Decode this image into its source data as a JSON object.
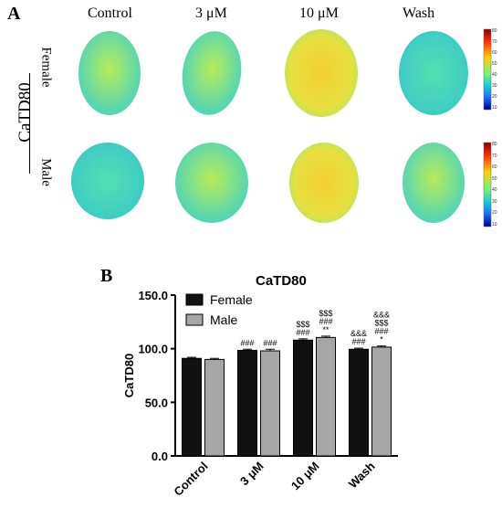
{
  "panel_a": {
    "letter": "A",
    "columns": [
      "Control",
      "3 μM",
      "10 μM",
      "Wash"
    ],
    "group_label": "CaTD80",
    "rows": [
      "Female",
      "Male"
    ],
    "colorbar_ticks": [
      "80",
      "70",
      "60",
      "50",
      "40",
      "30",
      "20",
      "10"
    ]
  },
  "panel_b": {
    "letter": "B"
  },
  "chart_data": {
    "type": "bar",
    "title": "CaTD80",
    "xlabel": "",
    "ylabel": "CaTD80",
    "ylim": [
      0,
      150
    ],
    "yticks": [
      "0.0",
      "50.0",
      "100.0",
      "150.0"
    ],
    "categories": [
      "Control",
      "3 μM",
      "10 μM",
      "Wash"
    ],
    "series": [
      {
        "name": "Female",
        "values": [
          91,
          98.5,
          108,
          99.5
        ],
        "errors": [
          1.0,
          1.0,
          1.2,
          1.0
        ],
        "color": "#111111"
      },
      {
        "name": "Male",
        "values": [
          90,
          98,
          110.5,
          101.5
        ],
        "errors": [
          1.0,
          1.5,
          1.2,
          1.0
        ],
        "color": "#a6a6a6"
      }
    ],
    "annotations": [
      [
        "",
        ""
      ],
      [
        "###",
        "###"
      ],
      [
        "$$$\n###",
        "$$$\n###\n**"
      ],
      [
        "&&&\n###",
        "&&&\n$$$\n###\n*"
      ]
    ],
    "legend": "top-left"
  }
}
